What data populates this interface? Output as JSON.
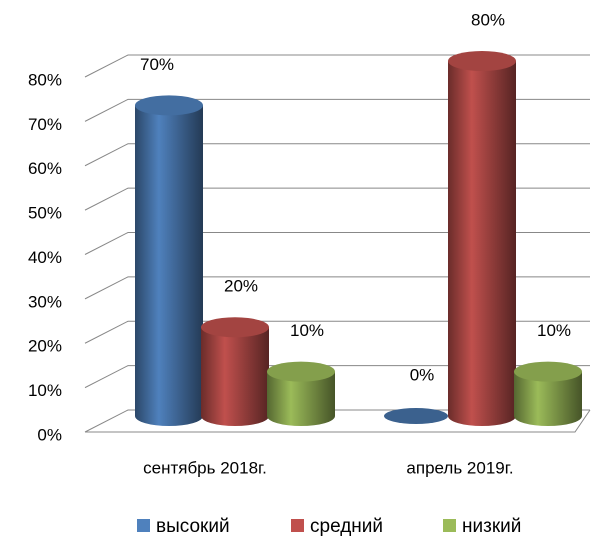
{
  "chart_data": {
    "type": "bar3d",
    "categories": [
      "сентябрь 2018г.",
      "апрель 2019г."
    ],
    "series": [
      {
        "name": "высокий",
        "color": "#4f81bd",
        "values": [
          70,
          0
        ],
        "value_labels": [
          "70%",
          "0%"
        ]
      },
      {
        "name": "средний",
        "color": "#c0504d",
        "values": [
          20,
          80
        ],
        "value_labels": [
          "20%",
          "80%"
        ]
      },
      {
        "name": "низкий",
        "color": "#9bbb59",
        "values": [
          10,
          10
        ],
        "value_labels": [
          "10%",
          "10%"
        ]
      }
    ],
    "ylim": [
      0,
      80
    ],
    "yticks": [
      {
        "value": 0,
        "label": "0%"
      },
      {
        "value": 10,
        "label": "10%"
      },
      {
        "value": 20,
        "label": "20%"
      },
      {
        "value": 30,
        "label": "30%"
      },
      {
        "value": 40,
        "label": "40%"
      },
      {
        "value": 50,
        "label": "50%"
      },
      {
        "value": 60,
        "label": "60%"
      },
      {
        "value": 70,
        "label": "70%"
      },
      {
        "value": 80,
        "label": "80%"
      }
    ],
    "grid": true,
    "legend": "bottom"
  }
}
